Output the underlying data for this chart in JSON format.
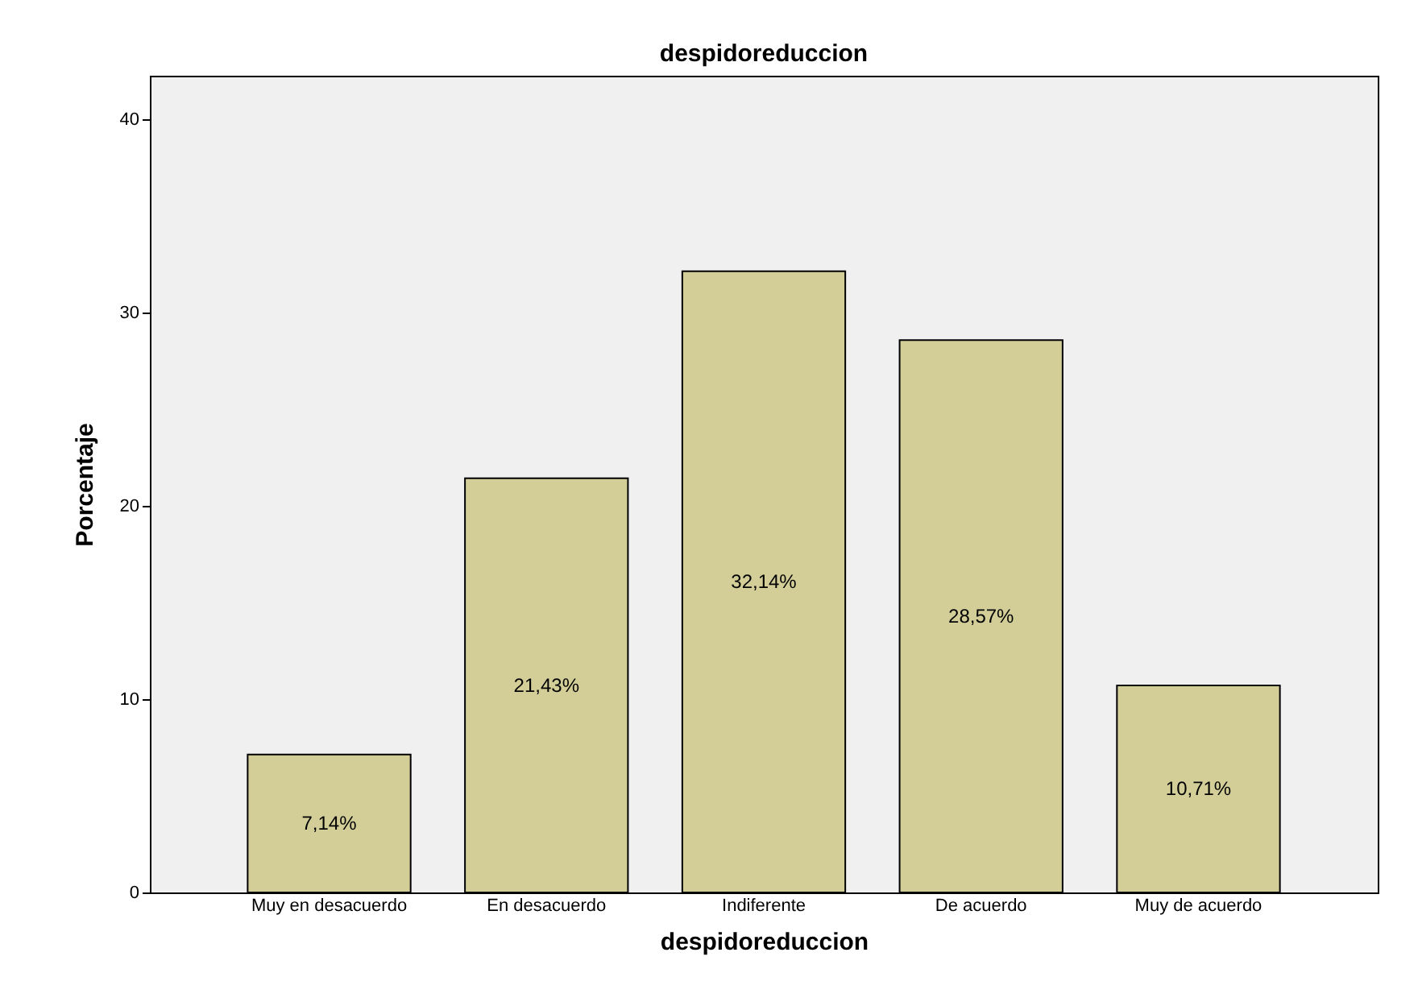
{
  "chart_data": {
    "type": "bar",
    "title": "despidoreduccion",
    "xlabel": "despidoreduccion",
    "ylabel": "Porcentaje",
    "categories": [
      "Muy en desacuerdo",
      "En desacuerdo",
      "Indiferente",
      "De acuerdo",
      "Muy de acuerdo"
    ],
    "values": [
      7.14,
      21.43,
      32.14,
      28.57,
      10.71
    ],
    "value_labels": [
      "7,14%",
      "21,43%",
      "32,14%",
      "28,57%",
      "10,71%"
    ],
    "color": "#d3ce97",
    "ylim": [
      0,
      42.25
    ],
    "yticks": [
      0,
      10,
      20,
      30,
      40
    ],
    "grid": false
  }
}
